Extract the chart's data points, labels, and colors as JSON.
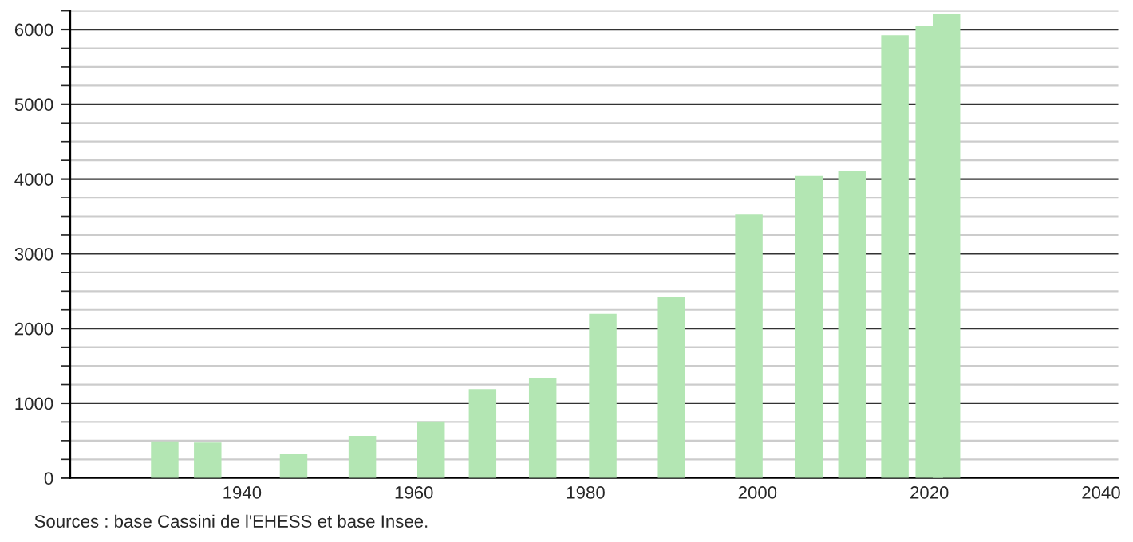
{
  "chart_data": {
    "type": "bar",
    "x": [
      1931,
      1936,
      1946,
      1954,
      1962,
      1968,
      1975,
      1982,
      1990,
      1999,
      2006,
      2011,
      2016,
      2020,
      2022
    ],
    "values": [
      490,
      475,
      324,
      562,
      756,
      1189,
      1340,
      2197,
      2421,
      3523,
      4042,
      4107,
      5922,
      6052,
      6203
    ],
    "color": "#b3e6b3",
    "xlim": [
      1920,
      2042
    ],
    "xticks": [
      1940,
      1960,
      1980,
      2000,
      2020,
      2040
    ],
    "ylim": [
      0,
      6250
    ],
    "yticks": [
      0,
      1000,
      2000,
      3000,
      4000,
      5000,
      6000
    ],
    "grid": "y",
    "annotations": [
      "Sources : base Cassini de l'EHESS et base Insee."
    ]
  }
}
